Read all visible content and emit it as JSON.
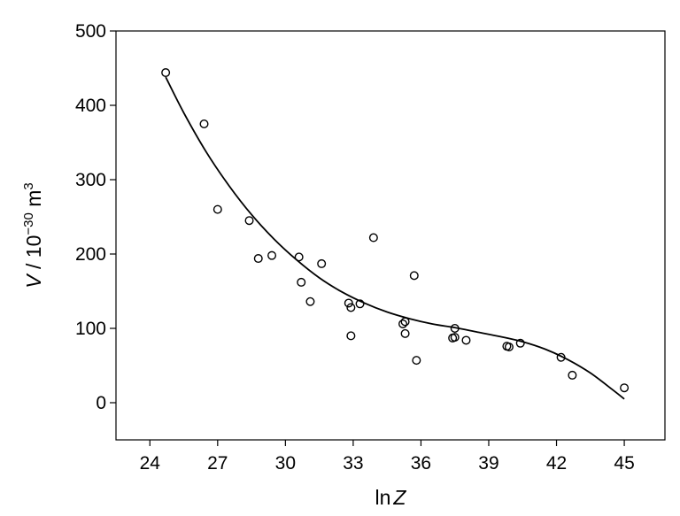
{
  "chart_data": {
    "type": "scatter",
    "title": "",
    "xlabel": "ln Z",
    "ylabel": "V / 10^-30 m^3",
    "xlim": [
      22.5,
      46.8
    ],
    "ylim": [
      -50,
      500
    ],
    "grid": false,
    "legend": "none",
    "x_ticks": [
      "24",
      "27",
      "30",
      "33",
      "36",
      "39",
      "42",
      "45"
    ],
    "y_ticks": [
      "0",
      "100",
      "200",
      "300",
      "400",
      "500"
    ],
    "points": [
      {
        "x": 24.7,
        "y": 444
      },
      {
        "x": 26.4,
        "y": 375
      },
      {
        "x": 27.0,
        "y": 260
      },
      {
        "x": 28.4,
        "y": 245
      },
      {
        "x": 28.8,
        "y": 194
      },
      {
        "x": 29.4,
        "y": 198
      },
      {
        "x": 30.6,
        "y": 196
      },
      {
        "x": 30.7,
        "y": 162
      },
      {
        "x": 31.1,
        "y": 136
      },
      {
        "x": 31.6,
        "y": 187
      },
      {
        "x": 32.8,
        "y": 134
      },
      {
        "x": 32.9,
        "y": 128
      },
      {
        "x": 32.9,
        "y": 90
      },
      {
        "x": 33.3,
        "y": 133
      },
      {
        "x": 33.9,
        "y": 222
      },
      {
        "x": 35.2,
        "y": 106
      },
      {
        "x": 35.3,
        "y": 109
      },
      {
        "x": 35.3,
        "y": 93
      },
      {
        "x": 35.7,
        "y": 171
      },
      {
        "x": 35.8,
        "y": 57
      },
      {
        "x": 37.4,
        "y": 87
      },
      {
        "x": 37.5,
        "y": 88
      },
      {
        "x": 37.5,
        "y": 100
      },
      {
        "x": 38.0,
        "y": 84
      },
      {
        "x": 39.8,
        "y": 76
      },
      {
        "x": 39.9,
        "y": 75
      },
      {
        "x": 40.4,
        "y": 80
      },
      {
        "x": 42.2,
        "y": 61
      },
      {
        "x": 42.7,
        "y": 37
      },
      {
        "x": 45.0,
        "y": 20
      }
    ],
    "fit_curve": {
      "x": [
        24.7,
        25.5,
        26.5,
        27.5,
        28.5,
        29.5,
        30.5,
        31.5,
        32.5,
        33.5,
        34.5,
        35.5,
        36.5,
        37.5,
        38.5,
        39.5,
        40.5,
        41.5,
        42.5,
        43.5,
        44.5,
        45.0
      ],
      "y": [
        438,
        390,
        337,
        292,
        253,
        220,
        192,
        168,
        149,
        134,
        122,
        113,
        106,
        101,
        95,
        89,
        82,
        72,
        58,
        40,
        17,
        5
      ]
    }
  }
}
